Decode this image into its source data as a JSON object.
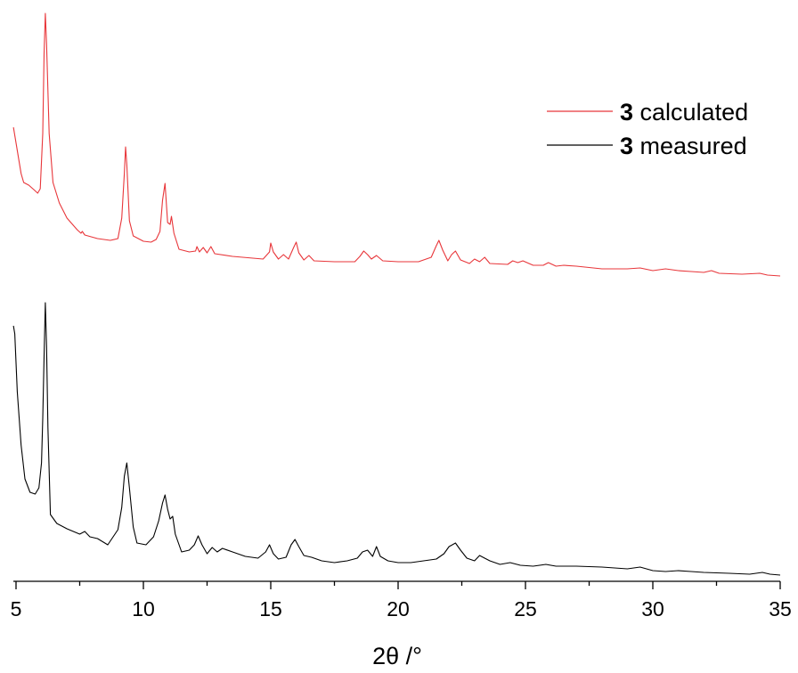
{
  "chart_data": {
    "type": "line",
    "title": "",
    "xlabel": "2θ /°",
    "ylabel": "",
    "xlim": [
      4.9,
      35
    ],
    "x_ticks": [
      5,
      10,
      15,
      20,
      25,
      30,
      35
    ],
    "x_tick_labels": [
      "5",
      "10",
      "15",
      "20",
      "25",
      "30",
      "35"
    ],
    "y_axis_visible": false,
    "grid": false,
    "legend_position": "top-right",
    "series": [
      {
        "name": "3 calculated",
        "legend_bold": "3",
        "legend_text": " calculated",
        "color": "#e8363a",
        "points": [
          [
            4.9,
            143
          ],
          [
            5.2,
            195
          ],
          [
            5.3,
            205
          ],
          [
            5.5,
            208
          ],
          [
            5.7,
            213
          ],
          [
            5.85,
            217
          ],
          [
            5.95,
            212
          ],
          [
            6.05,
            150
          ],
          [
            6.1,
            60
          ],
          [
            6.15,
            15
          ],
          [
            6.2,
            50
          ],
          [
            6.3,
            150
          ],
          [
            6.45,
            205
          ],
          [
            6.7,
            228
          ],
          [
            7.0,
            245
          ],
          [
            7.4,
            258
          ],
          [
            7.55,
            262
          ],
          [
            7.6,
            260
          ],
          [
            7.7,
            264
          ],
          [
            8.2,
            268
          ],
          [
            8.7,
            270
          ],
          [
            9.0,
            268
          ],
          [
            9.15,
            245
          ],
          [
            9.25,
            195
          ],
          [
            9.3,
            165
          ],
          [
            9.35,
            185
          ],
          [
            9.45,
            248
          ],
          [
            9.6,
            265
          ],
          [
            10.0,
            271
          ],
          [
            10.3,
            272
          ],
          [
            10.5,
            269
          ],
          [
            10.65,
            260
          ],
          [
            10.75,
            225
          ],
          [
            10.85,
            206
          ],
          [
            10.95,
            250
          ],
          [
            11.05,
            252
          ],
          [
            11.1,
            243
          ],
          [
            11.2,
            262
          ],
          [
            11.4,
            280
          ],
          [
            11.8,
            283
          ],
          [
            12.05,
            282
          ],
          [
            12.1,
            277
          ],
          [
            12.2,
            283
          ],
          [
            12.35,
            278
          ],
          [
            12.5,
            284
          ],
          [
            12.65,
            277
          ],
          [
            12.8,
            285
          ],
          [
            13.5,
            288
          ],
          [
            14.7,
            291
          ],
          [
            14.95,
            283
          ],
          [
            15.0,
            273
          ],
          [
            15.1,
            283
          ],
          [
            15.3,
            291
          ],
          [
            15.5,
            286
          ],
          [
            15.7,
            291
          ],
          [
            15.9,
            278
          ],
          [
            16.0,
            272
          ],
          [
            16.1,
            284
          ],
          [
            16.3,
            292
          ],
          [
            16.5,
            287
          ],
          [
            16.7,
            293
          ],
          [
            17.5,
            294
          ],
          [
            18.3,
            294
          ],
          [
            18.5,
            288
          ],
          [
            18.65,
            282
          ],
          [
            18.8,
            286
          ],
          [
            18.95,
            291
          ],
          [
            19.15,
            287
          ],
          [
            19.4,
            293
          ],
          [
            20.0,
            294
          ],
          [
            20.8,
            294
          ],
          [
            21.3,
            289
          ],
          [
            21.5,
            276
          ],
          [
            21.6,
            270
          ],
          [
            21.75,
            281
          ],
          [
            21.95,
            293
          ],
          [
            22.1,
            286
          ],
          [
            22.25,
            282
          ],
          [
            22.45,
            292
          ],
          [
            22.8,
            296
          ],
          [
            23.0,
            291
          ],
          [
            23.2,
            294
          ],
          [
            23.4,
            289
          ],
          [
            23.6,
            296
          ],
          [
            24.3,
            297
          ],
          [
            24.5,
            293
          ],
          [
            24.7,
            295
          ],
          [
            24.9,
            293
          ],
          [
            25.3,
            298
          ],
          [
            25.7,
            298
          ],
          [
            25.9,
            295
          ],
          [
            26.2,
            299
          ],
          [
            26.5,
            298
          ],
          [
            27.0,
            299
          ],
          [
            28.0,
            302
          ],
          [
            29.0,
            302
          ],
          [
            29.5,
            301
          ],
          [
            30.0,
            304
          ],
          [
            30.5,
            302
          ],
          [
            31.0,
            304
          ],
          [
            31.5,
            305
          ],
          [
            32.0,
            306
          ],
          [
            32.3,
            304
          ],
          [
            32.6,
            307
          ],
          [
            33.5,
            308
          ],
          [
            34.2,
            307
          ],
          [
            34.5,
            309
          ],
          [
            35.0,
            310
          ]
        ]
      },
      {
        "name": "3 measured",
        "legend_bold": "3",
        "legend_text": " measured",
        "color": "#000000",
        "points": [
          [
            4.9,
            366
          ],
          [
            4.95,
            375
          ],
          [
            5.05,
            440
          ],
          [
            5.2,
            500
          ],
          [
            5.35,
            538
          ],
          [
            5.55,
            553
          ],
          [
            5.75,
            555
          ],
          [
            5.9,
            548
          ],
          [
            6.0,
            520
          ],
          [
            6.05,
            470
          ],
          [
            6.1,
            400
          ],
          [
            6.15,
            340
          ],
          [
            6.2,
            390
          ],
          [
            6.25,
            480
          ],
          [
            6.35,
            578
          ],
          [
            6.6,
            588
          ],
          [
            7.0,
            594
          ],
          [
            7.5,
            600
          ],
          [
            7.7,
            597
          ],
          [
            7.9,
            603
          ],
          [
            8.2,
            605
          ],
          [
            8.6,
            612
          ],
          [
            9.0,
            595
          ],
          [
            9.15,
            570
          ],
          [
            9.25,
            535
          ],
          [
            9.35,
            520
          ],
          [
            9.45,
            548
          ],
          [
            9.6,
            592
          ],
          [
            9.75,
            610
          ],
          [
            10.1,
            612
          ],
          [
            10.4,
            603
          ],
          [
            10.6,
            585
          ],
          [
            10.75,
            565
          ],
          [
            10.85,
            556
          ],
          [
            10.95,
            572
          ],
          [
            11.05,
            583
          ],
          [
            11.15,
            580
          ],
          [
            11.25,
            600
          ],
          [
            11.5,
            620
          ],
          [
            11.8,
            618
          ],
          [
            12.0,
            612
          ],
          [
            12.15,
            602
          ],
          [
            12.3,
            612
          ],
          [
            12.5,
            622
          ],
          [
            12.7,
            615
          ],
          [
            12.9,
            620
          ],
          [
            13.1,
            616
          ],
          [
            13.5,
            620
          ],
          [
            14.0,
            625
          ],
          [
            14.5,
            627
          ],
          [
            14.8,
            620
          ],
          [
            14.95,
            612
          ],
          [
            15.1,
            622
          ],
          [
            15.3,
            628
          ],
          [
            15.6,
            626
          ],
          [
            15.8,
            612
          ],
          [
            15.95,
            606
          ],
          [
            16.1,
            614
          ],
          [
            16.3,
            624
          ],
          [
            16.6,
            626
          ],
          [
            17.0,
            630
          ],
          [
            17.5,
            632
          ],
          [
            18.0,
            630
          ],
          [
            18.4,
            627
          ],
          [
            18.6,
            620
          ],
          [
            18.8,
            618
          ],
          [
            19.0,
            625
          ],
          [
            19.15,
            614
          ],
          [
            19.3,
            625
          ],
          [
            19.6,
            630
          ],
          [
            20.0,
            632
          ],
          [
            20.5,
            632
          ],
          [
            21.0,
            630
          ],
          [
            21.5,
            628
          ],
          [
            21.8,
            622
          ],
          [
            22.0,
            614
          ],
          [
            22.25,
            610
          ],
          [
            22.45,
            618
          ],
          [
            22.7,
            627
          ],
          [
            23.0,
            630
          ],
          [
            23.2,
            624
          ],
          [
            23.4,
            627
          ],
          [
            23.6,
            630
          ],
          [
            24.0,
            634
          ],
          [
            24.4,
            632
          ],
          [
            24.8,
            635
          ],
          [
            25.3,
            636
          ],
          [
            25.8,
            634
          ],
          [
            26.2,
            636
          ],
          [
            27.0,
            636
          ],
          [
            28.0,
            637
          ],
          [
            29.0,
            639
          ],
          [
            29.5,
            637
          ],
          [
            30.0,
            641
          ],
          [
            30.5,
            642
          ],
          [
            31.0,
            641
          ],
          [
            31.5,
            642
          ],
          [
            32.0,
            643
          ],
          [
            33.0,
            644
          ],
          [
            33.8,
            645
          ],
          [
            34.3,
            643
          ],
          [
            34.6,
            645
          ],
          [
            35.0,
            646
          ]
        ]
      }
    ]
  }
}
